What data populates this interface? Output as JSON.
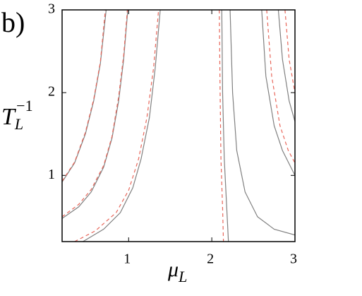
{
  "chart_data": {
    "type": "line",
    "panel_label": "b)",
    "x_label": {
      "base": "μ",
      "sub": "L"
    },
    "y_label": {
      "base": "T",
      "sub": "L",
      "sup": "−1"
    },
    "xlim": [
      0.2,
      3
    ],
    "ylim": [
      0.2,
      3
    ],
    "xticks": [
      1,
      2,
      3
    ],
    "yticks": [
      1,
      2,
      3
    ],
    "grid": false,
    "series": [
      {
        "color": "#808080",
        "dashed": false,
        "x": [
          0.2,
          0.35,
          0.48,
          0.58,
          0.66,
          0.73
        ],
        "values": [
          0.92,
          1.15,
          1.5,
          1.9,
          2.35,
          3.0
        ]
      },
      {
        "color": "#e8665a",
        "dashed": true,
        "x": [
          0.2,
          0.35,
          0.48,
          0.58,
          0.66,
          0.72
        ],
        "values": [
          0.93,
          1.16,
          1.52,
          1.92,
          2.37,
          3.0
        ]
      },
      {
        "color": "#808080",
        "dashed": false,
        "x": [
          0.2,
          0.4,
          0.55,
          0.7,
          0.8,
          0.88,
          0.94,
          0.99
        ],
        "values": [
          0.48,
          0.62,
          0.8,
          1.1,
          1.45,
          1.9,
          2.4,
          3.0
        ]
      },
      {
        "color": "#e8665a",
        "dashed": true,
        "x": [
          0.2,
          0.4,
          0.55,
          0.7,
          0.8,
          0.88,
          0.94,
          0.985
        ],
        "values": [
          0.5,
          0.65,
          0.83,
          1.12,
          1.47,
          1.95,
          2.45,
          3.0
        ]
      },
      {
        "color": "#808080",
        "dashed": false,
        "x": [
          0.45,
          0.7,
          0.9,
          1.05,
          1.15,
          1.25,
          1.32,
          1.38
        ],
        "values": [
          0.2,
          0.35,
          0.55,
          0.85,
          1.2,
          1.7,
          2.3,
          3.0
        ]
      },
      {
        "color": "#e8665a",
        "dashed": true,
        "x": [
          0.35,
          0.6,
          0.85,
          1.0,
          1.12,
          1.22,
          1.3,
          1.36
        ],
        "values": [
          0.2,
          0.33,
          0.55,
          0.82,
          1.2,
          1.7,
          2.3,
          3.0
        ]
      },
      {
        "color": "#808080",
        "dashed": false,
        "x": [
          2.12,
          2.13,
          2.15,
          2.18,
          2.2
        ],
        "values": [
          3.0,
          2.0,
          1.2,
          0.6,
          0.2
        ]
      },
      {
        "color": "#e8665a",
        "dashed": true,
        "x": [
          2.09,
          2.1,
          2.11,
          2.13,
          2.14
        ],
        "values": [
          3.0,
          2.0,
          1.2,
          0.6,
          0.2
        ]
      },
      {
        "color": "#808080",
        "dashed": false,
        "x": [
          2.22,
          2.25,
          2.3,
          2.4,
          2.55,
          2.75,
          3.0
        ],
        "values": [
          3.0,
          2.0,
          1.3,
          0.8,
          0.5,
          0.35,
          0.28
        ]
      },
      {
        "color": "#808080",
        "dashed": false,
        "x": [
          2.6,
          2.65,
          2.75,
          2.85,
          3.0
        ],
        "values": [
          3.0,
          2.2,
          1.6,
          1.3,
          1.0
        ]
      },
      {
        "color": "#e8665a",
        "dashed": true,
        "x": [
          2.66,
          2.72,
          2.82,
          2.92,
          3.0
        ],
        "values": [
          3.0,
          2.2,
          1.6,
          1.3,
          1.15
        ]
      },
      {
        "color": "#808080",
        "dashed": false,
        "x": [
          2.8,
          2.85,
          2.93,
          3.0
        ],
        "values": [
          3.0,
          2.4,
          1.9,
          1.65
        ]
      },
      {
        "color": "#e8665a",
        "dashed": true,
        "x": [
          2.88,
          2.93,
          3.0
        ],
        "values": [
          3.0,
          2.4,
          2.0
        ]
      }
    ]
  }
}
